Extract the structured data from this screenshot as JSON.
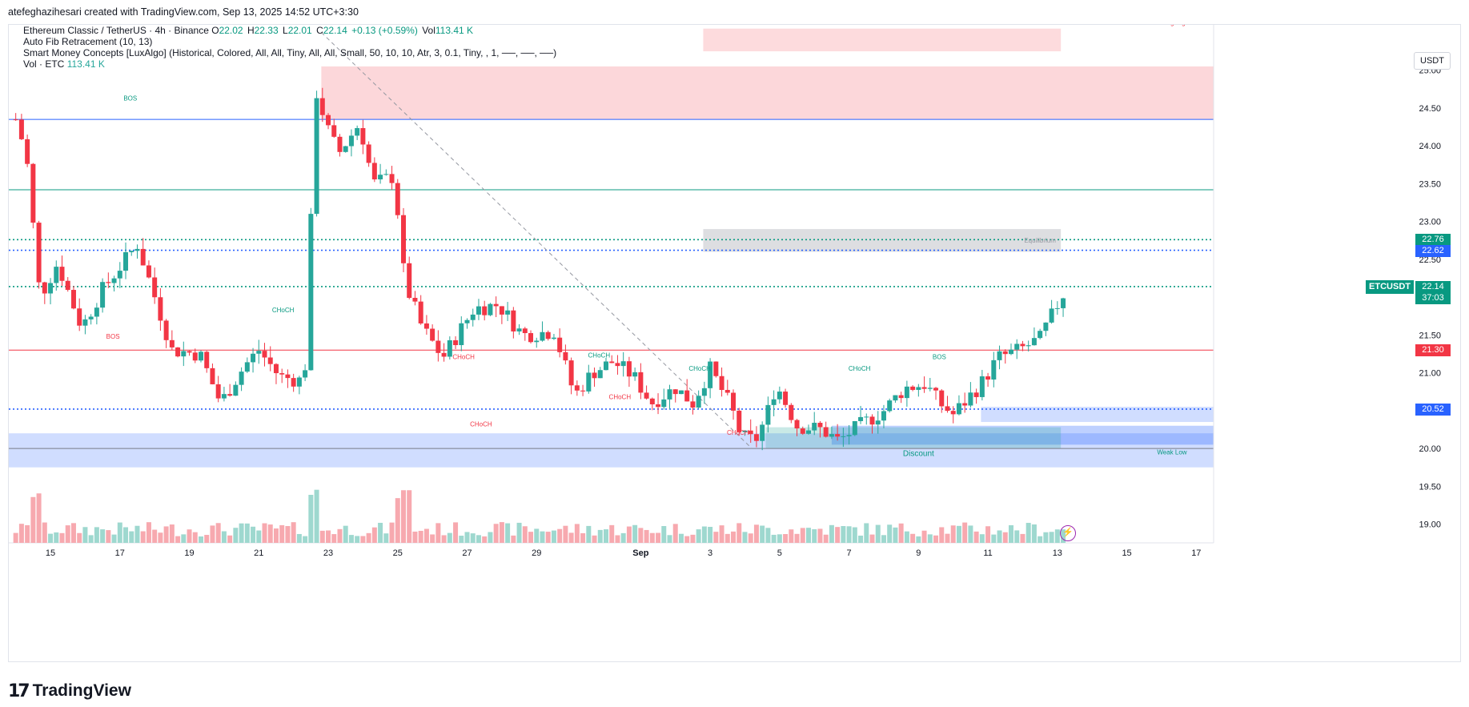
{
  "header": {
    "created_by": "atefeghazihesari created with TradingView.com, Sep 13, 2025 14:52 UTC+3:30"
  },
  "legend": {
    "symbol": "Ethereum Classic / TetherUS · 4h · Binance",
    "o_label": "O",
    "o": "22.02",
    "h_label": "H",
    "h": "22.33",
    "l_label": "L",
    "l": "22.01",
    "c_label": "C",
    "c": "22.14",
    "change": "+0.13 (+0.59%)",
    "vol_label": "Vol",
    "vol": "113.41 K",
    "line2": "Auto Fib Retracement (10, 13)",
    "line3": "Smart Money Concepts [LuxAlgo] (Historical, Colored, All, All, Tiny, All, All, Small, 50, 10, 10, Atr, 3, 0.1, Tiny, , 1, ──, ──, ──)",
    "line4_label": "Vol · ETC",
    "line4_value": "113.41 K"
  },
  "currency_button": "USDT",
  "price_tags": {
    "fib_upper": "22.76",
    "fib_lower": "22.62",
    "symbol": "ETCUSDT",
    "last": "22.14",
    "countdown": "37:03",
    "red_level": "21.30",
    "blue_level": "20.52"
  },
  "footer": {
    "brand": "TradingView"
  },
  "colors": {
    "up": "#26a69a",
    "down": "#f23645",
    "vol_up": "#9ed8cf",
    "vol_down": "#f7a9af",
    "blue_dotted": "#2962ff",
    "red_line": "#f23645",
    "green_line": "#089981",
    "supply_zone": "#f2c4c8",
    "demand_zone": "#bbd0fb",
    "equilibrium": "#d9d9d9"
  },
  "chart_data": {
    "type": "candlestick",
    "symbol": "ETCUSDT",
    "interval": "4h",
    "ylim": [
      18.9,
      25.6
    ],
    "y_ticks": [
      "19.00",
      "19.50",
      "20.00",
      "20.50",
      "21.00",
      "21.50",
      "22.00",
      "22.50",
      "23.00",
      "23.50",
      "24.00",
      "24.50",
      "25.00"
    ],
    "x_ticks": [
      "15",
      "17",
      "19",
      "21",
      "23",
      "25",
      "27",
      "29",
      "Sep",
      "3",
      "5",
      "7",
      "9",
      "11",
      "13",
      "15",
      "17"
    ],
    "x_tick_days": [
      15,
      17,
      19,
      21,
      23,
      25,
      27,
      29,
      32,
      34,
      36,
      38,
      40,
      42,
      44,
      46,
      48
    ],
    "x_range_days": [
      13.8,
      48.5
    ],
    "key_points": [
      {
        "day": 14.0,
        "price": 24.35
      },
      {
        "day": 14.3,
        "price": 23.9
      },
      {
        "day": 14.7,
        "price": 22.0
      },
      {
        "day": 15.2,
        "price": 22.45
      },
      {
        "day": 15.9,
        "price": 21.6
      },
      {
        "day": 16.5,
        "price": 22.1
      },
      {
        "day": 17.5,
        "price": 22.7
      },
      {
        "day": 17.9,
        "price": 22.15
      },
      {
        "day": 18.5,
        "price": 21.3
      },
      {
        "day": 19.3,
        "price": 21.25
      },
      {
        "day": 19.9,
        "price": 20.6
      },
      {
        "day": 20.6,
        "price": 21.1
      },
      {
        "day": 21.0,
        "price": 21.3
      },
      {
        "day": 21.6,
        "price": 20.95
      },
      {
        "day": 22.2,
        "price": 20.9
      },
      {
        "day": 22.4,
        "price": 21.2
      },
      {
        "day": 22.6,
        "price": 24.8
      },
      {
        "day": 23.0,
        "price": 24.2
      },
      {
        "day": 23.3,
        "price": 23.9
      },
      {
        "day": 23.9,
        "price": 24.3
      },
      {
        "day": 24.3,
        "price": 23.5
      },
      {
        "day": 24.9,
        "price": 23.6
      },
      {
        "day": 25.2,
        "price": 22.2
      },
      {
        "day": 25.7,
        "price": 21.6
      },
      {
        "day": 26.3,
        "price": 21.2
      },
      {
        "day": 27.2,
        "price": 21.85
      },
      {
        "day": 27.9,
        "price": 21.9
      },
      {
        "day": 28.6,
        "price": 21.5
      },
      {
        "day": 29.5,
        "price": 21.55
      },
      {
        "day": 30.1,
        "price": 20.7
      },
      {
        "day": 30.6,
        "price": 21.0
      },
      {
        "day": 31.2,
        "price": 21.15
      },
      {
        "day": 31.8,
        "price": 20.95
      },
      {
        "day": 32.3,
        "price": 20.6
      },
      {
        "day": 33.0,
        "price": 20.8
      },
      {
        "day": 33.5,
        "price": 20.6
      },
      {
        "day": 34.0,
        "price": 21.05
      },
      {
        "day": 34.6,
        "price": 20.55
      },
      {
        "day": 34.9,
        "price": 20.15
      },
      {
        "day": 35.3,
        "price": 20.1
      },
      {
        "day": 35.6,
        "price": 20.4
      },
      {
        "day": 35.9,
        "price": 20.85
      },
      {
        "day": 36.5,
        "price": 20.3
      },
      {
        "day": 37.2,
        "price": 20.25
      },
      {
        "day": 37.7,
        "price": 20.1
      },
      {
        "day": 38.3,
        "price": 20.3
      },
      {
        "day": 39.0,
        "price": 20.5
      },
      {
        "day": 39.6,
        "price": 20.8
      },
      {
        "day": 40.2,
        "price": 20.85
      },
      {
        "day": 40.6,
        "price": 20.6
      },
      {
        "day": 41.0,
        "price": 20.45
      },
      {
        "day": 41.8,
        "price": 20.85
      },
      {
        "day": 42.3,
        "price": 21.2
      },
      {
        "day": 42.9,
        "price": 21.3
      },
      {
        "day": 43.5,
        "price": 21.45
      },
      {
        "day": 44.0,
        "price": 21.9
      },
      {
        "day": 44.3,
        "price": 22.14
      }
    ],
    "last": {
      "o": 22.02,
      "h": 22.33,
      "l": 22.01,
      "c": 22.14
    },
    "horizontal_levels": [
      {
        "price": 24.35,
        "style": "solid",
        "color": "blue"
      },
      {
        "price": 23.42,
        "style": "solid",
        "color": "green"
      },
      {
        "price": 22.76,
        "style": "dotted",
        "color": "green"
      },
      {
        "price": 22.62,
        "style": "dotted",
        "color": "blue"
      },
      {
        "price": 22.14,
        "style": "dotted",
        "color": "green"
      },
      {
        "price": 21.3,
        "style": "solid",
        "color": "red"
      },
      {
        "price": 20.52,
        "style": "dotted",
        "color": "blue"
      },
      {
        "price": 20.0,
        "style": "solid",
        "color": "grey"
      }
    ],
    "zones": [
      {
        "name": "supply",
        "from_day": 22.8,
        "to_day": 48.5,
        "low": 24.35,
        "high": 25.05
      },
      {
        "name": "strong-high-zone",
        "from_day": 33.8,
        "to_day": 44.1,
        "low": 25.25,
        "high": 25.55
      },
      {
        "name": "equilibrium",
        "from_day": 33.8,
        "to_day": 44.1,
        "low": 22.6,
        "high": 22.9
      },
      {
        "name": "discount",
        "from_day": 13.8,
        "to_day": 48.5,
        "low": 19.75,
        "high": 20.2
      },
      {
        "name": "demand-1",
        "from_day": 41.8,
        "to_day": 48.5,
        "low": 20.35,
        "high": 20.55
      },
      {
        "name": "demand-2",
        "from_day": 37.5,
        "to_day": 48.5,
        "low": 20.05,
        "high": 20.3
      },
      {
        "name": "demand-3",
        "from_day": 35.6,
        "to_day": 44.1,
        "low": 20.0,
        "high": 20.28
      }
    ],
    "annotations": [
      {
        "text": "BOS",
        "day": 17.3,
        "price": 24.6,
        "color": "green"
      },
      {
        "text": "BOS",
        "day": 16.8,
        "price": 21.45,
        "color": "red"
      },
      {
        "text": "CHoCH",
        "day": 21.7,
        "price": 21.8,
        "color": "green"
      },
      {
        "text": "CHoCH",
        "day": 26.9,
        "price": 21.18,
        "color": "red"
      },
      {
        "text": "CHoCH",
        "day": 27.4,
        "price": 20.29,
        "color": "red"
      },
      {
        "text": "CHoCH",
        "day": 30.8,
        "price": 21.2,
        "color": "green"
      },
      {
        "text": "CHoCH",
        "day": 31.4,
        "price": 20.65,
        "color": "red"
      },
      {
        "text": "CHoCH",
        "day": 33.7,
        "price": 21.03,
        "color": "green"
      },
      {
        "text": "CHoCH",
        "day": 34.8,
        "price": 20.18,
        "color": "red"
      },
      {
        "text": "CHoCH",
        "day": 38.3,
        "price": 21.03,
        "color": "green"
      },
      {
        "text": "BOS",
        "day": 40.6,
        "price": 21.18,
        "color": "green"
      },
      {
        "text": "Discount",
        "day": 40.0,
        "price": 19.9,
        "color": "green"
      },
      {
        "text": "Equilibrium",
        "day": 43.5,
        "price": 22.72,
        "color": "grey"
      },
      {
        "text": "Weak Low",
        "day": 47.3,
        "price": 19.92,
        "color": "green"
      },
      {
        "text": "Strong High",
        "day": 47.3,
        "price": 25.6,
        "color": "red"
      }
    ]
  }
}
